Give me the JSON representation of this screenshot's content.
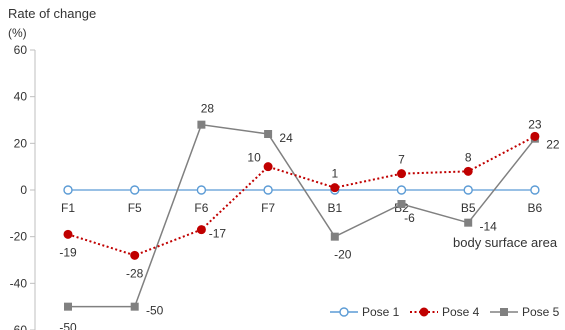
{
  "chart_data": {
    "type": "line",
    "ylabel": "Rate of change",
    "yunit": "(%)",
    "xlabel": "body surface area",
    "categories": [
      "F1",
      "F5",
      "F6",
      "F7",
      "B1",
      "B2",
      "B5",
      "B6"
    ],
    "ylim": [
      -60,
      60
    ],
    "yticks": [
      60,
      40,
      20,
      0,
      -20,
      -40,
      -60
    ],
    "ytick_labels": [
      "60",
      "40",
      "20",
      "0",
      "-20",
      "-40",
      "-60"
    ],
    "grid": false,
    "legend_position": "bottom-right",
    "series": [
      {
        "name": "Pose 1",
        "values": [
          0,
          0,
          0,
          0,
          0,
          0,
          0,
          0
        ],
        "color": "#5b9bd5",
        "marker": "open-circle",
        "line": "solid"
      },
      {
        "name": "Pose 4",
        "values": [
          -19,
          -28,
          -17,
          10,
          1,
          7,
          8,
          23
        ],
        "labels": [
          "-19",
          "-28",
          "-17",
          "10",
          "1",
          "7",
          "8",
          "23"
        ],
        "color": "#c00000",
        "marker": "filled-circle",
        "line": "dotted"
      },
      {
        "name": "Pose 5",
        "values": [
          -50,
          -50,
          28,
          24,
          -20,
          -6,
          -14,
          22
        ],
        "labels": [
          "-50",
          "-50",
          "28",
          "24",
          "-20",
          "-6",
          "-14",
          "22"
        ],
        "color": "#808080",
        "marker": "square",
        "line": "solid"
      }
    ]
  }
}
